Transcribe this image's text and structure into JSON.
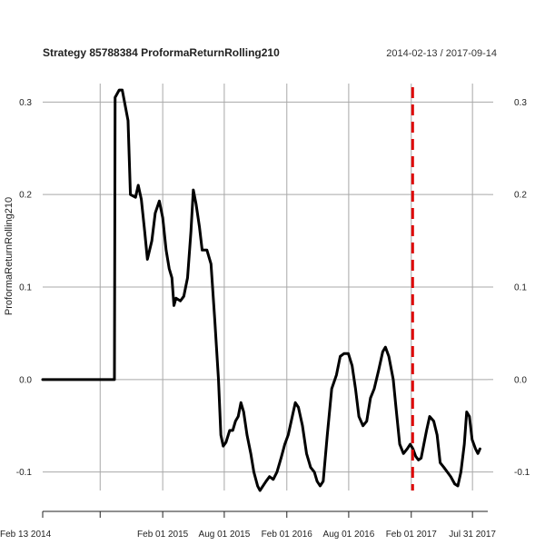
{
  "chart_data": {
    "type": "line",
    "title": "Strategy 85788384 ProformaReturnRolling210",
    "date_range": "2014-02-13 / 2017-09-14",
    "ylabel": "ProformaReturnRolling210",
    "xlabel": "",
    "ylim": [
      -0.12,
      0.32
    ],
    "y_ticks": [
      -0.1,
      0.0,
      0.1,
      0.2,
      0.3
    ],
    "y_tick_labels": [
      "-0.1",
      "0.0",
      "0.1",
      "0.2",
      "0.3"
    ],
    "x_ticks": [
      {
        "date": "2014-02-13",
        "label": "Feb 13 2014"
      },
      {
        "date": "2014-08-01",
        "label": ""
      },
      {
        "date": "2015-02-01",
        "label": "Feb 01 2015"
      },
      {
        "date": "2015-08-01",
        "label": "Aug 01 2015"
      },
      {
        "date": "2016-02-01",
        "label": "Feb 01 2016"
      },
      {
        "date": "2016-08-01",
        "label": "Aug 01 2016"
      },
      {
        "date": "2017-02-01",
        "label": "Feb 01 2017"
      },
      {
        "date": "2017-07-31",
        "label": "Jul 31 2017"
      }
    ],
    "grid": true,
    "vline": {
      "date": "2017-02-05",
      "color": "#dd0000",
      "style": "dashed"
    },
    "series_color": "#000000",
    "series": [
      {
        "name": "",
        "points": [
          [
            "2014-02-13",
            0.0
          ],
          [
            "2014-09-12",
            0.0
          ],
          [
            "2014-09-13",
            0.15
          ],
          [
            "2014-09-14",
            0.305
          ],
          [
            "2014-09-26",
            0.313
          ],
          [
            "2014-10-05",
            0.313
          ],
          [
            "2014-10-22",
            0.28
          ],
          [
            "2014-10-29",
            0.2
          ],
          [
            "2014-11-13",
            0.197
          ],
          [
            "2014-11-21",
            0.21
          ],
          [
            "2014-11-30",
            0.195
          ],
          [
            "2014-12-10",
            0.16
          ],
          [
            "2014-12-18",
            0.13
          ],
          [
            "2014-12-31",
            0.15
          ],
          [
            "2015-01-10",
            0.18
          ],
          [
            "2015-01-22",
            0.193
          ],
          [
            "2015-02-01",
            0.175
          ],
          [
            "2015-02-11",
            0.14
          ],
          [
            "2015-02-20",
            0.12
          ],
          [
            "2015-02-28",
            0.11
          ],
          [
            "2015-03-06",
            0.08
          ],
          [
            "2015-03-12",
            0.088
          ],
          [
            "2015-03-25",
            0.085
          ],
          [
            "2015-04-04",
            0.09
          ],
          [
            "2015-04-15",
            0.11
          ],
          [
            "2015-04-25",
            0.16
          ],
          [
            "2015-05-02",
            0.205
          ],
          [
            "2015-05-10",
            0.19
          ],
          [
            "2015-05-20",
            0.165
          ],
          [
            "2015-05-28",
            0.14
          ],
          [
            "2015-06-11",
            0.14
          ],
          [
            "2015-06-23",
            0.125
          ],
          [
            "2015-07-04",
            0.065
          ],
          [
            "2015-07-15",
            0.0
          ],
          [
            "2015-07-22",
            -0.06
          ],
          [
            "2015-07-29",
            -0.072
          ],
          [
            "2015-08-06",
            -0.068
          ],
          [
            "2015-08-17",
            -0.055
          ],
          [
            "2015-08-26",
            -0.055
          ],
          [
            "2015-09-03",
            -0.045
          ],
          [
            "2015-09-11",
            -0.04
          ],
          [
            "2015-09-19",
            -0.025
          ],
          [
            "2015-09-27",
            -0.035
          ],
          [
            "2015-10-07",
            -0.06
          ],
          [
            "2015-10-18",
            -0.08
          ],
          [
            "2015-10-27",
            -0.1
          ],
          [
            "2015-11-07",
            -0.115
          ],
          [
            "2015-11-14",
            -0.12
          ],
          [
            "2015-11-23",
            -0.115
          ],
          [
            "2015-12-02",
            -0.11
          ],
          [
            "2015-12-12",
            -0.105
          ],
          [
            "2015-12-23",
            -0.108
          ],
          [
            "2016-01-03",
            -0.1
          ],
          [
            "2016-01-15",
            -0.085
          ],
          [
            "2016-01-26",
            -0.07
          ],
          [
            "2016-02-05",
            -0.06
          ],
          [
            "2016-02-17",
            -0.04
          ],
          [
            "2016-02-26",
            -0.025
          ],
          [
            "2016-03-06",
            -0.03
          ],
          [
            "2016-03-18",
            -0.05
          ],
          [
            "2016-03-30",
            -0.08
          ],
          [
            "2016-04-11",
            -0.095
          ],
          [
            "2016-04-22",
            -0.1
          ],
          [
            "2016-04-30",
            -0.11
          ],
          [
            "2016-05-09",
            -0.115
          ],
          [
            "2016-05-18",
            -0.11
          ],
          [
            "2016-05-30",
            -0.06
          ],
          [
            "2016-06-12",
            -0.01
          ],
          [
            "2016-06-26",
            0.005
          ],
          [
            "2016-07-07",
            0.025
          ],
          [
            "2016-07-18",
            0.028
          ],
          [
            "2016-07-31",
            0.028
          ],
          [
            "2016-08-11",
            0.015
          ],
          [
            "2016-08-21",
            -0.01
          ],
          [
            "2016-08-31",
            -0.04
          ],
          [
            "2016-09-12",
            -0.05
          ],
          [
            "2016-09-23",
            -0.045
          ],
          [
            "2016-10-04",
            -0.02
          ],
          [
            "2016-10-15",
            -0.01
          ],
          [
            "2016-10-28",
            0.01
          ],
          [
            "2016-11-09",
            0.03
          ],
          [
            "2016-11-17",
            0.035
          ],
          [
            "2016-11-27",
            0.025
          ],
          [
            "2016-12-10",
            0.0
          ],
          [
            "2016-12-18",
            -0.03
          ],
          [
            "2016-12-29",
            -0.07
          ],
          [
            "2017-01-09",
            -0.08
          ],
          [
            "2017-01-20",
            -0.075
          ],
          [
            "2017-01-29",
            -0.07
          ],
          [
            "2017-02-06",
            -0.075
          ],
          [
            "2017-02-14",
            -0.083
          ],
          [
            "2017-02-22",
            -0.087
          ],
          [
            "2017-03-02",
            -0.085
          ],
          [
            "2017-03-10",
            -0.07
          ],
          [
            "2017-03-18",
            -0.055
          ],
          [
            "2017-03-27",
            -0.04
          ],
          [
            "2017-04-08",
            -0.045
          ],
          [
            "2017-04-18",
            -0.06
          ],
          [
            "2017-04-27",
            -0.09
          ],
          [
            "2017-05-08",
            -0.095
          ],
          [
            "2017-05-18",
            -0.1
          ],
          [
            "2017-05-28",
            -0.105
          ],
          [
            "2017-06-09",
            -0.113
          ],
          [
            "2017-06-18",
            -0.115
          ],
          [
            "2017-06-27",
            -0.1
          ],
          [
            "2017-07-07",
            -0.07
          ],
          [
            "2017-07-14",
            -0.035
          ],
          [
            "2017-07-22",
            -0.04
          ],
          [
            "2017-07-30",
            -0.065
          ],
          [
            "2017-08-09",
            -0.075
          ],
          [
            "2017-08-16",
            -0.08
          ],
          [
            "2017-08-22",
            -0.075
          ]
        ]
      }
    ]
  }
}
